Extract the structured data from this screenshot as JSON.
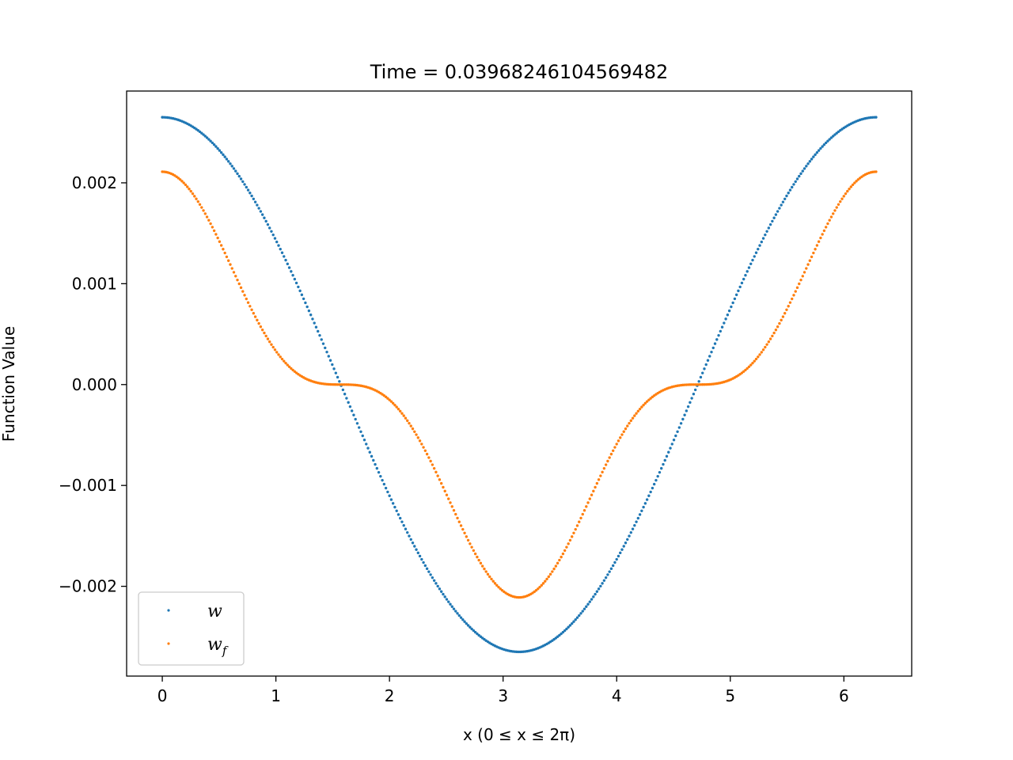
{
  "chart_data": {
    "type": "scatter",
    "title": "Time = 0.03968246104569482",
    "xlabel": "x (0 ≤ x ≤ 2π)",
    "ylabel": "Function Value",
    "xlim": [
      -0.314,
      6.597
    ],
    "ylim": [
      -0.00289,
      0.00291
    ],
    "x_ticks": [
      0,
      1,
      2,
      3,
      4,
      5,
      6
    ],
    "x_tick_labels": [
      "0",
      "1",
      "2",
      "3",
      "4",
      "5",
      "6"
    ],
    "y_ticks": [
      0.002,
      0.001,
      0.0,
      -0.001,
      -0.002
    ],
    "y_tick_labels": [
      "0.002",
      "0.001",
      "0.000",
      "−0.001",
      "−0.002"
    ],
    "grid": false,
    "legend_position": "lower-left",
    "x_domain": [
      0,
      6.2832
    ],
    "num_points": 400,
    "series": [
      {
        "name": "w",
        "color": "#1f77b4",
        "formula": "y = 0.00265 * cos(x)",
        "amplitude": 0.00265
      },
      {
        "name": "w_f",
        "color": "#ff7f0e",
        "formula": "y = 0.00211 * cos(x)^3",
        "amplitude": 0.00211
      }
    ],
    "legend": {
      "entries": [
        {
          "base": "w",
          "sub": ""
        },
        {
          "base": "w",
          "sub": "f"
        }
      ]
    }
  }
}
